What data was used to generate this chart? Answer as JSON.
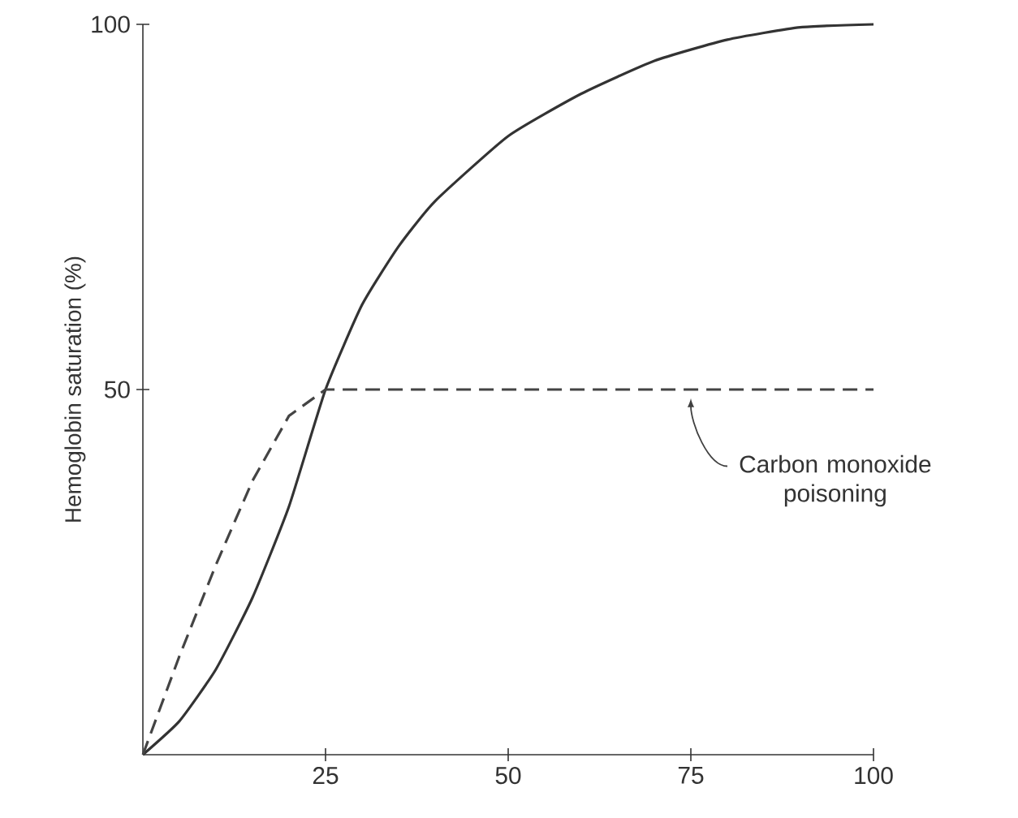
{
  "chart_data": {
    "type": "line",
    "ylabel": "Hemoglobin saturation (%)",
    "xlim": [
      0,
      100
    ],
    "ylim": [
      0,
      100
    ],
    "xticks": [
      25,
      50,
      75,
      100
    ],
    "yticks": [
      50,
      100
    ],
    "series": [
      {
        "color": "#333333",
        "line_style": "solid",
        "x": [
          0,
          5,
          10,
          15,
          20,
          25,
          30,
          35,
          40,
          50,
          60,
          70,
          80,
          90,
          100
        ],
        "values": [
          0,
          4.6,
          11.7,
          21.5,
          34,
          50,
          61.6,
          69.6,
          75.8,
          84.7,
          90.5,
          95,
          97.9,
          99.6,
          100
        ]
      },
      {
        "color": "#444444",
        "line_style": "dashed",
        "x": [
          0,
          5,
          10,
          15,
          20,
          25,
          100
        ],
        "values": [
          0,
          13.5,
          26,
          37.5,
          46.4,
          50,
          50
        ]
      }
    ],
    "annotations": [
      "Carbon monoxide poisoning"
    ]
  }
}
